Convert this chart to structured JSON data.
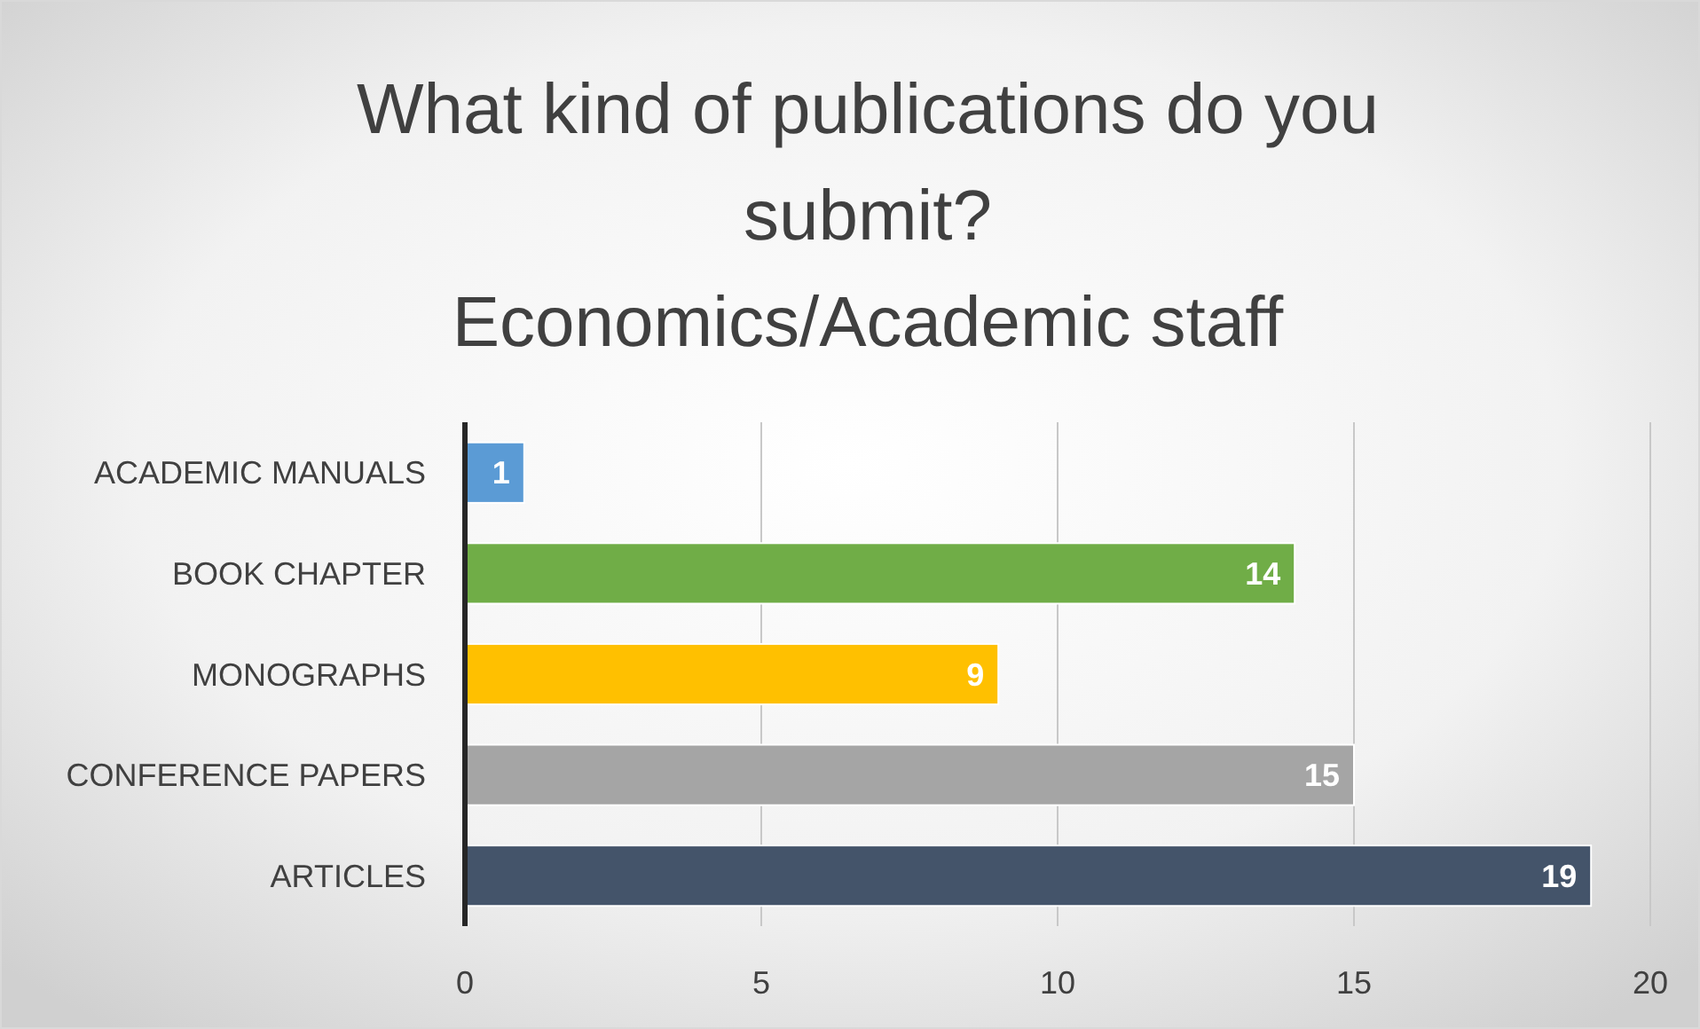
{
  "chart_data": {
    "type": "bar",
    "orientation": "horizontal",
    "title": "What kind of publications do you submit?",
    "subtitle": "Economics/Academic staff",
    "categories": [
      "ACADEMIC MANUALS",
      "BOOK CHAPTER",
      "MONOGRAPHS",
      "CONFERENCE PAPERS",
      "ARTICLES"
    ],
    "values": [
      1,
      14,
      9,
      15,
      19
    ],
    "colors": [
      "#5b9bd5",
      "#70ad47",
      "#ffc000",
      "#a5a5a5",
      "#44546a"
    ],
    "xlim": [
      0,
      20
    ],
    "xticks": [
      0,
      5,
      10,
      15,
      20
    ],
    "grid": "x",
    "data_labels": true
  }
}
